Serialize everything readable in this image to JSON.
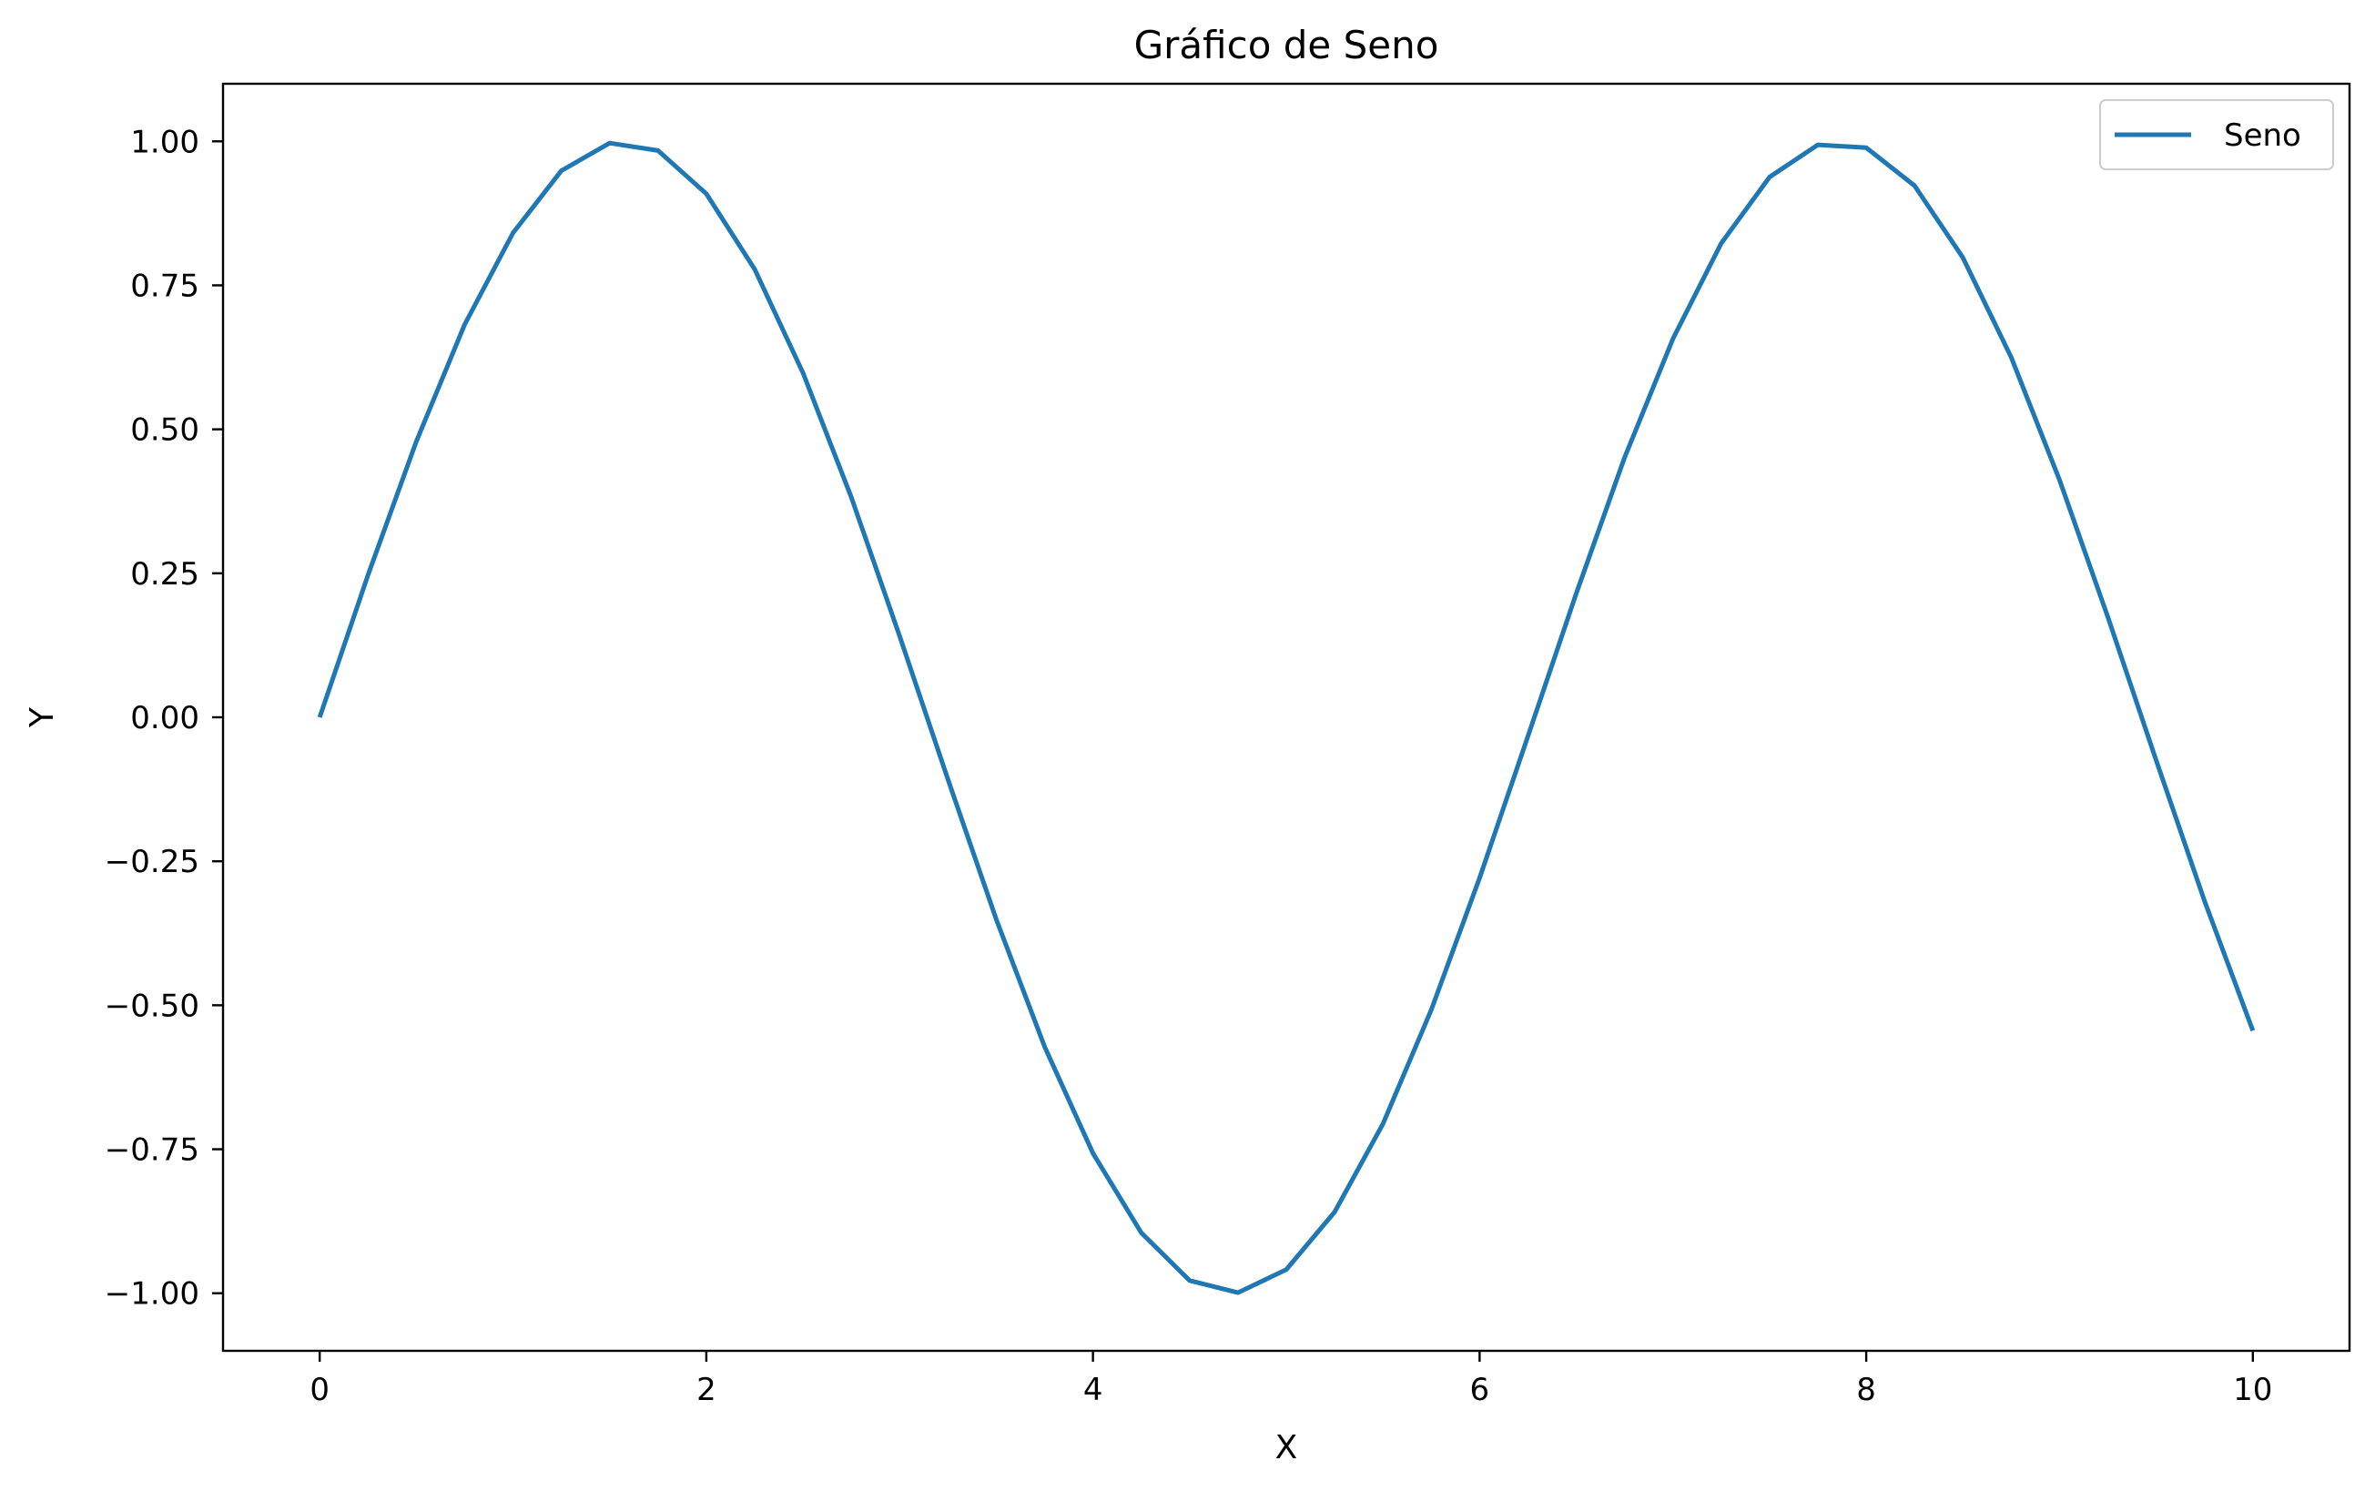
{
  "chart_data": {
    "type": "line",
    "title": "Gráfico de Seno",
    "xlabel": "X",
    "ylabel": "Y",
    "xlim": [
      -0.5,
      10.5
    ],
    "ylim": [
      -1.1,
      1.1
    ],
    "x_ticks": [
      0,
      2,
      4,
      6,
      8,
      10
    ],
    "x_tick_labels": [
      "0",
      "2",
      "4",
      "6",
      "8",
      "10"
    ],
    "y_ticks": [
      1.0,
      0.75,
      0.5,
      0.25,
      0.0,
      -0.25,
      -0.5,
      -0.75,
      -1.0
    ],
    "y_tick_labels": [
      "1.00",
      "0.75",
      "0.50",
      "0.25",
      "0.00",
      "−0.25",
      "−0.50",
      "−0.75",
      "−1.00"
    ],
    "grid": false,
    "legend_position": "top-right",
    "series": [
      {
        "name": "Seno",
        "color": "#1f77b4",
        "x": [
          0,
          0.25,
          0.5,
          0.75,
          1.0,
          1.25,
          1.5,
          1.75,
          2.0,
          2.25,
          2.5,
          2.75,
          3.0,
          3.25,
          3.5,
          3.75,
          4.0,
          4.25,
          4.5,
          4.75,
          5.0,
          5.25,
          5.5,
          5.75,
          6.0,
          6.25,
          6.5,
          6.75,
          7.0,
          7.25,
          7.5,
          7.75,
          8.0,
          8.25,
          8.5,
          8.75,
          9.0,
          9.25,
          9.5,
          9.75,
          10.0
        ],
        "y": [
          0.0,
          0.247,
          0.479,
          0.682,
          0.841,
          0.949,
          0.997,
          0.984,
          0.909,
          0.778,
          0.598,
          0.382,
          0.141,
          -0.108,
          -0.351,
          -0.572,
          -0.757,
          -0.895,
          -0.978,
          -0.999,
          -0.959,
          -0.859,
          -0.706,
          -0.508,
          -0.279,
          -0.033,
          0.215,
          0.451,
          0.657,
          0.823,
          0.938,
          0.994,
          0.989,
          0.923,
          0.798,
          0.625,
          0.412,
          0.174,
          -0.075,
          -0.319,
          -0.544
        ]
      }
    ]
  }
}
